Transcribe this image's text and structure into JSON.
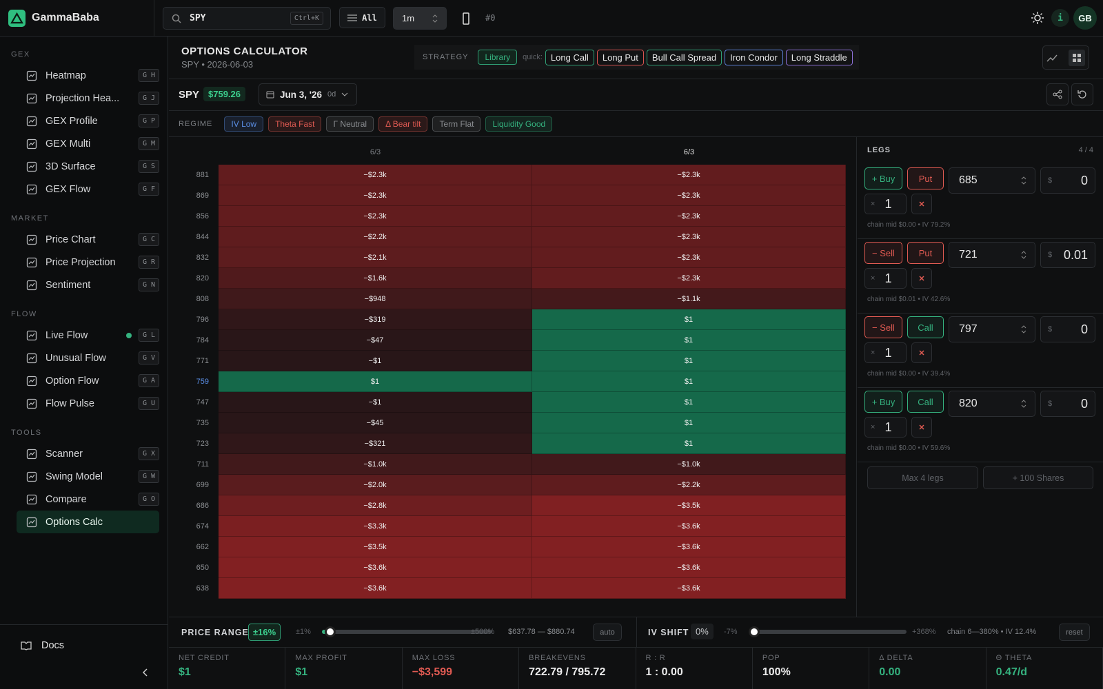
{
  "header": {
    "brand": "GammaBaba",
    "search": "SPY",
    "search_shortcut": "Ctrl+K",
    "filter": "All",
    "interval": "1m",
    "channel": "#0",
    "info": "i",
    "avatar": "GB"
  },
  "sidebar": {
    "sections": [
      {
        "title": "GEX",
        "items": [
          {
            "label": "Heatmap",
            "shortcut": "G H"
          },
          {
            "label": "Projection Hea...",
            "shortcut": "G J"
          },
          {
            "label": "GEX Profile",
            "shortcut": "G P"
          },
          {
            "label": "GEX Multi",
            "shortcut": "G M"
          },
          {
            "label": "3D Surface",
            "shortcut": "G S"
          },
          {
            "label": "GEX Flow",
            "shortcut": "G F"
          }
        ]
      },
      {
        "title": "MARKET",
        "items": [
          {
            "label": "Price Chart",
            "shortcut": "G C"
          },
          {
            "label": "Price Projection",
            "shortcut": "G R"
          },
          {
            "label": "Sentiment",
            "shortcut": "G N"
          }
        ]
      },
      {
        "title": "FLOW",
        "items": [
          {
            "label": "Live Flow",
            "shortcut": "G L",
            "live": true
          },
          {
            "label": "Unusual Flow",
            "shortcut": "G V"
          },
          {
            "label": "Option Flow",
            "shortcut": "G A"
          },
          {
            "label": "Flow Pulse",
            "shortcut": "G U"
          }
        ]
      },
      {
        "title": "TOOLS",
        "items": [
          {
            "label": "Scanner",
            "shortcut": "G X"
          },
          {
            "label": "Swing Model",
            "shortcut": "G W"
          },
          {
            "label": "Compare",
            "shortcut": "G O"
          },
          {
            "label": "Options Calc",
            "active": true
          }
        ]
      }
    ],
    "docs": "Docs"
  },
  "calculator": {
    "title": "OPTIONS CALCULATOR",
    "subtitle": "SPY • 2026-06-03",
    "strategy_label": "STRATEGY",
    "library": "Library",
    "quick_label": "quick:",
    "quick": [
      {
        "text": "Long Call",
        "color": "#2f9e74"
      },
      {
        "text": "Long Put",
        "color": "#d9534f"
      },
      {
        "text": "Bull Call Spread",
        "color": "#2f9e74"
      },
      {
        "text": "Iron Condor",
        "color": "#5b7fd6"
      },
      {
        "text": "Long Straddle",
        "color": "#8b6fd6"
      }
    ]
  },
  "ticker": {
    "symbol": "SPY",
    "price": "$759.26",
    "date": "Jun 3, '26",
    "dte": "0d"
  },
  "regime": {
    "label": "REGIME",
    "chips": [
      {
        "text": "IV Low",
        "color": "#5b8fe6"
      },
      {
        "text": "Theta Fast",
        "color": "#e05a52"
      },
      {
        "text": "Γ Neutral",
        "color": "#8a8d91"
      },
      {
        "text": "Δ Bear tilt",
        "color": "#e05a52"
      },
      {
        "text": "Term Flat",
        "color": "#8a8d91"
      },
      {
        "text": "Liquidity Good",
        "color": "#35b27f"
      }
    ]
  },
  "heatmap": {
    "columns": [
      "6/3",
      "6/3"
    ],
    "rows": [
      {
        "strike": "881",
        "cells": [
          "−$2.3k",
          "−$2.3k"
        ]
      },
      {
        "strike": "869",
        "cells": [
          "−$2.3k",
          "−$2.3k"
        ]
      },
      {
        "strike": "856",
        "cells": [
          "−$2.3k",
          "−$2.3k"
        ]
      },
      {
        "strike": "844",
        "cells": [
          "−$2.2k",
          "−$2.3k"
        ]
      },
      {
        "strike": "832",
        "cells": [
          "−$2.1k",
          "−$2.3k"
        ]
      },
      {
        "strike": "820",
        "cells": [
          "−$1.6k",
          "−$2.3k"
        ]
      },
      {
        "strike": "808",
        "cells": [
          "−$948",
          "−$1.1k"
        ]
      },
      {
        "strike": "796",
        "cells": [
          "−$319",
          "$1"
        ]
      },
      {
        "strike": "784",
        "cells": [
          "−$47",
          "$1"
        ]
      },
      {
        "strike": "771",
        "cells": [
          "−$1",
          "$1"
        ]
      },
      {
        "strike": "759",
        "cells": [
          "$1",
          "$1"
        ]
      },
      {
        "strike": "747",
        "cells": [
          "−$1",
          "$1"
        ]
      },
      {
        "strike": "735",
        "cells": [
          "−$45",
          "$1"
        ]
      },
      {
        "strike": "723",
        "cells": [
          "−$321",
          "$1"
        ]
      },
      {
        "strike": "711",
        "cells": [
          "−$1.0k",
          "−$1.0k"
        ]
      },
      {
        "strike": "699",
        "cells": [
          "−$2.0k",
          "−$2.2k"
        ]
      },
      {
        "strike": "686",
        "cells": [
          "−$2.8k",
          "−$3.5k"
        ]
      },
      {
        "strike": "674",
        "cells": [
          "−$3.3k",
          "−$3.6k"
        ]
      },
      {
        "strike": "662",
        "cells": [
          "−$3.5k",
          "−$3.6k"
        ]
      },
      {
        "strike": "650",
        "cells": [
          "−$3.6k",
          "−$3.6k"
        ]
      },
      {
        "strike": "638",
        "cells": [
          "−$3.6k",
          "−$3.6k"
        ]
      }
    ]
  },
  "legs": {
    "label": "LEGS",
    "count": "4 / 4",
    "items": [
      {
        "side": "+ Buy",
        "side_color": "#35b27f",
        "type": "Put",
        "type_color": "#e05a52",
        "strike": "685",
        "price_prefix": "$",
        "price": "0",
        "qty_prefix": "×",
        "qty": "1",
        "note": "chain mid $0.00 • IV 79.2%"
      },
      {
        "side": "− Sell",
        "side_color": "#e05a52",
        "type": "Put",
        "type_color": "#e05a52",
        "strike": "721",
        "price_prefix": "$",
        "price": "0.01",
        "qty_prefix": "×",
        "qty": "1",
        "note": "chain mid $0.01 • IV 42.6%"
      },
      {
        "side": "− Sell",
        "side_color": "#e05a52",
        "type": "Call",
        "type_color": "#35b27f",
        "strike": "797",
        "price_prefix": "$",
        "price": "0",
        "qty_prefix": "×",
        "qty": "1",
        "note": "chain mid $0.00 • IV 39.4%"
      },
      {
        "side": "+ Buy",
        "side_color": "#35b27f",
        "type": "Call",
        "type_color": "#35b27f",
        "strike": "820",
        "price_prefix": "$",
        "price": "0",
        "qty_prefix": "×",
        "qty": "1",
        "note": "chain mid $0.00 • IV 59.6%"
      }
    ],
    "max": "Max 4 legs",
    "shares": "+ 100 Shares"
  },
  "controls": {
    "price_range": {
      "label": "PRICE RANGE",
      "value": "±16%",
      "min": "±1%",
      "max": "±500%",
      "range": "$637.78 — $880.74",
      "button": "auto"
    },
    "iv_shift": {
      "label": "IV SHIFT",
      "value": "0%",
      "min": "-7%",
      "max": "+368%",
      "info": "chain 6—380% • IV 12.4%",
      "button": "reset"
    }
  },
  "stats": [
    {
      "label": "NET CREDIT",
      "value": "$1",
      "color": "#35b27f"
    },
    {
      "label": "MAX PROFIT",
      "value": "$1",
      "color": "#35b27f"
    },
    {
      "label": "MAX LOSS",
      "value": "−$3,599",
      "color": "#e05a52"
    },
    {
      "label": "BREAKEVENS",
      "value": "722.79 / 795.72",
      "color": "#ececec"
    },
    {
      "label": "R : R",
      "value": "1 : 0.00",
      "color": "#ececec"
    },
    {
      "label": "POP",
      "value": "100%",
      "color": "#ececec"
    },
    {
      "label": "Δ DELTA",
      "value": "0.00",
      "color": "#35b27f"
    },
    {
      "label": "Θ THETA",
      "value": "0.47/d",
      "color": "#35b27f"
    }
  ]
}
